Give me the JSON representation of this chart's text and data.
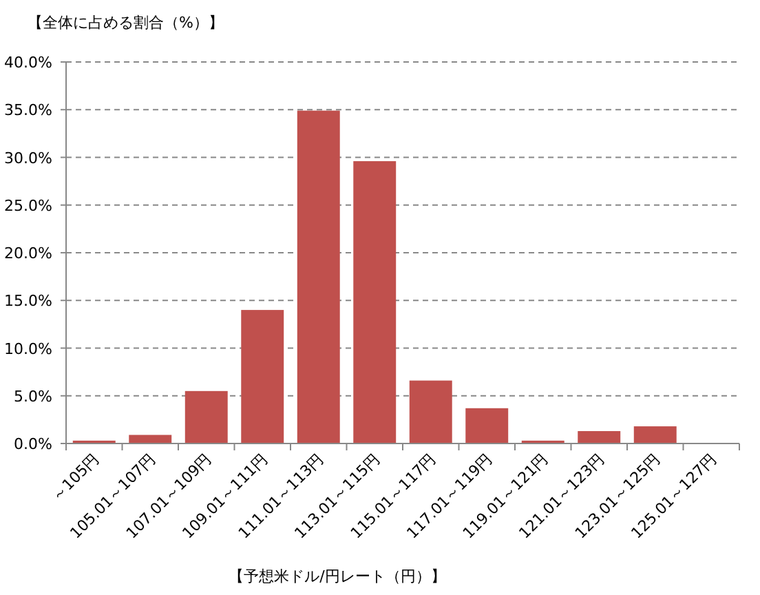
{
  "chart_data": {
    "type": "bar",
    "title": "【全体に占める割合（%）】",
    "xlabel": "【予想米ドル/円レート（円）】",
    "categories": [
      "～105円",
      "105.01～107円",
      "107.01～109円",
      "109.01～111円",
      "111.01～113円",
      "113.01～115円",
      "115.01～117円",
      "117.01～119円",
      "119.01～121円",
      "121.01～123円",
      "123.01～125円",
      "125.01～127円"
    ],
    "values": [
      0.3,
      0.9,
      5.5,
      14.0,
      34.9,
      29.6,
      6.6,
      3.7,
      0.3,
      1.3,
      1.8,
      0
    ],
    "color": "#c0504d",
    "ylim": [
      0,
      40
    ],
    "yticks": [
      {
        "value": 0,
        "label": "0.0%"
      },
      {
        "value": 5,
        "label": "5.0%"
      },
      {
        "value": 10,
        "label": "10.0%"
      },
      {
        "value": 15,
        "label": "15.0%"
      },
      {
        "value": 20,
        "label": "20.0%"
      },
      {
        "value": 25,
        "label": "25.0%"
      },
      {
        "value": 30,
        "label": "30.0%"
      },
      {
        "value": 35,
        "label": "35.0%"
      },
      {
        "value": 40,
        "label": "40.0%"
      }
    ],
    "grid": "y"
  }
}
